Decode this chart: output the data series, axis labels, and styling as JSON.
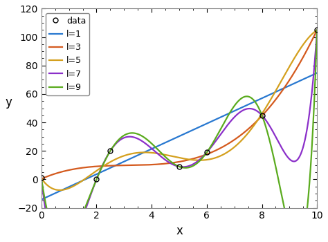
{
  "data_x": [
    0,
    2,
    2.5,
    5,
    6,
    8,
    10
  ],
  "data_y": [
    1,
    0,
    20,
    9,
    19,
    45,
    105
  ],
  "xlim": [
    0,
    10
  ],
  "ylim": [
    -20,
    120
  ],
  "xlabel": "x",
  "ylabel": "y",
  "xticks": [
    0,
    2,
    4,
    6,
    8,
    10
  ],
  "yticks": [
    -20,
    0,
    20,
    40,
    60,
    80,
    100,
    120
  ],
  "lines": [
    {
      "label": "l=1",
      "degree": 1,
      "color": "#2878d0"
    },
    {
      "label": "l=3",
      "degree": 3,
      "color": "#d45a1e"
    },
    {
      "label": "l=5",
      "degree": 5,
      "color": "#d4a01e"
    },
    {
      "label": "l=7",
      "degree": 7,
      "color": "#8b2fc9"
    },
    {
      "label": "l=9",
      "degree": 9,
      "color": "#5aab1e"
    }
  ],
  "background_color": "#ffffff",
  "data_marker": "o",
  "data_markerfacecolor": "none",
  "data_markeredgecolor": "black",
  "data_markersize": 5,
  "linewidth": 1.6,
  "title": "",
  "legend_fontsize": 9,
  "axis_fontsize": 12
}
